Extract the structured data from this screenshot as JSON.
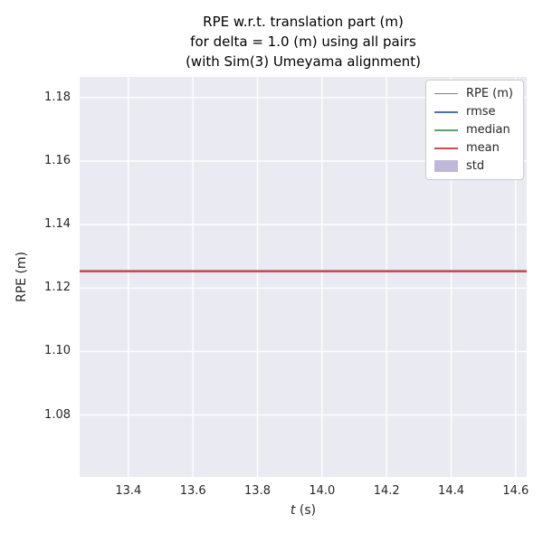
{
  "chart": {
    "title_lines": [
      "RPE w.r.t. translation part (m)",
      "for delta = 1.0 (m) using all pairs",
      "(with Sim(3) Umeyama alignment)"
    ],
    "xlabel_var": "t",
    "xlabel_unit": " (s)",
    "ylabel": "RPE (m)"
  },
  "chart_data": {
    "type": "line",
    "title": "RPE w.r.t. translation part (m)\nfor delta = 1.0 (m) using all pairs\n(with Sim(3) Umeyama alignment)",
    "xlabel": "t (s)",
    "ylabel": "RPE (m)",
    "xlim": [
      13.249,
      14.634
    ],
    "ylim": [
      1.0605,
      1.1865
    ],
    "xticks": [
      13.4,
      13.6,
      13.8,
      14.0,
      14.2,
      14.4,
      14.6
    ],
    "xtick_labels": [
      "13.4",
      "13.6",
      "13.8",
      "14.0",
      "14.2",
      "14.4",
      "14.6"
    ],
    "yticks": [
      1.08,
      1.1,
      1.12,
      1.14,
      1.16,
      1.18
    ],
    "ytick_labels": [
      "1.08",
      "1.10",
      "1.12",
      "1.14",
      "1.16",
      "1.18"
    ],
    "grid": true,
    "grid_color": "#ffffff",
    "plot_bg": "#eaeaf2",
    "legend_position": "upper right",
    "series": [
      {
        "name": "RPE (m)",
        "color": "#7f7f7f",
        "width": 1.8,
        "x": [
          13.249,
          14.634
        ],
        "values": [
          1.1253,
          1.1253
        ]
      },
      {
        "name": "rmse",
        "color": "#4c72b0",
        "width": 2.0,
        "x": [
          13.249,
          14.634
        ],
        "values": [
          1.1253,
          1.1253
        ]
      },
      {
        "name": "median",
        "color": "#55a868",
        "width": 2.0,
        "x": [
          13.249,
          14.634
        ],
        "values": [
          1.1253,
          1.1253
        ]
      },
      {
        "name": "mean",
        "color": "#c44e52",
        "width": 2.6,
        "x": [
          13.249,
          14.634
        ],
        "values": [
          1.1253,
          1.1253
        ]
      }
    ],
    "bands": [
      {
        "name": "std",
        "color": "#8172b2",
        "center": 1.1253,
        "halfwidth": 0.0
      }
    ]
  }
}
